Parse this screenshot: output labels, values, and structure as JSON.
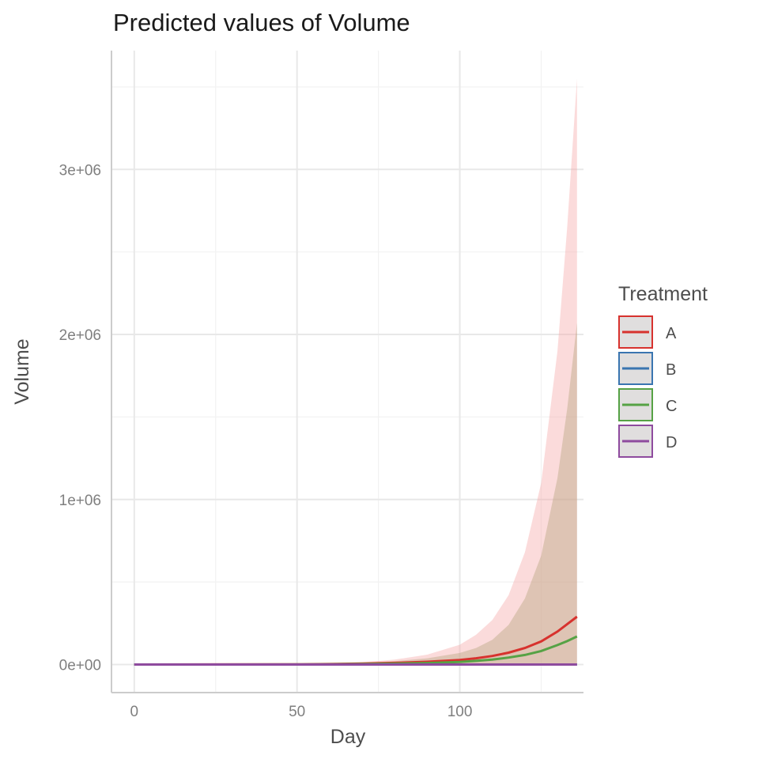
{
  "chart_data": {
    "type": "line",
    "title": "Predicted values of Volume",
    "xlabel": "Day",
    "ylabel": "Volume",
    "xlim": [
      -7,
      138
    ],
    "ylim": [
      -170000,
      3720000
    ],
    "x_ticks": [
      0,
      50,
      100
    ],
    "x_tick_labels": [
      "0",
      "50",
      "100"
    ],
    "x_minor_ticks": [
      25,
      75,
      125
    ],
    "y_ticks": [
      0,
      1000000,
      2000000,
      3000000
    ],
    "y_tick_labels": [
      "0e+00",
      "1e+06",
      "2e+06",
      "3e+06"
    ],
    "y_minor_ticks": [
      500000,
      1500000,
      2500000,
      3500000
    ],
    "grid": true,
    "legend": {
      "title": "Treatment",
      "position": "right"
    },
    "series": [
      {
        "name": "A",
        "color": "#d7322e",
        "fill": "#f4a6a6",
        "x": [
          0,
          50,
          60,
          70,
          80,
          90,
          100,
          105,
          110,
          115,
          120,
          125,
          130,
          133,
          136
        ],
        "y": [
          0,
          1000,
          3000,
          6000,
          10000,
          17000,
          28000,
          38000,
          52000,
          72000,
          100000,
          140000,
          200000,
          245000,
          290000
        ],
        "lower": [
          0,
          0,
          0,
          0,
          0,
          0,
          0,
          0,
          0,
          0,
          0,
          0,
          0,
          0,
          0
        ],
        "upper": [
          0,
          2000,
          6000,
          14000,
          30000,
          60000,
          120000,
          180000,
          270000,
          420000,
          680000,
          1100000,
          1900000,
          2650000,
          3550000
        ]
      },
      {
        "name": "B",
        "color": "#3a75b0",
        "fill": "#9bbbe0",
        "x": [
          0,
          136
        ],
        "y": [
          0,
          0
        ],
        "lower": [
          0,
          0
        ],
        "upper": [
          0,
          0
        ]
      },
      {
        "name": "C",
        "color": "#56a245",
        "fill": "#b5a27a",
        "x": [
          0,
          50,
          60,
          70,
          80,
          90,
          100,
          105,
          110,
          115,
          120,
          125,
          130,
          133,
          136
        ],
        "y": [
          0,
          500,
          1500,
          3000,
          5500,
          9000,
          16000,
          22000,
          30000,
          42000,
          58000,
          82000,
          118000,
          142000,
          170000
        ],
        "lower": [
          0,
          0,
          0,
          0,
          0,
          0,
          0,
          0,
          0,
          0,
          0,
          0,
          0,
          0,
          0
        ],
        "upper": [
          0,
          1000,
          4000,
          10000,
          20000,
          38000,
          70000,
          100000,
          150000,
          240000,
          400000,
          660000,
          1130000,
          1550000,
          2070000
        ]
      },
      {
        "name": "D",
        "color": "#8e4b9e",
        "fill": "#c9a6d2",
        "x": [
          0,
          136
        ],
        "y": [
          0,
          0
        ],
        "lower": [
          0,
          0
        ],
        "upper": [
          0,
          0
        ]
      }
    ]
  }
}
